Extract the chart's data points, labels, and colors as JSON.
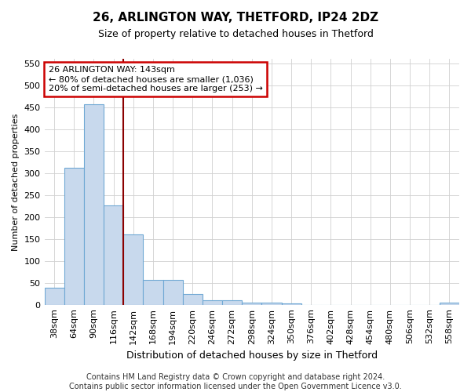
{
  "title1": "26, ARLINGTON WAY, THETFORD, IP24 2DZ",
  "title2": "Size of property relative to detached houses in Thetford",
  "xlabel": "Distribution of detached houses by size in Thetford",
  "ylabel": "Number of detached properties",
  "categories": [
    "38sqm",
    "64sqm",
    "90sqm",
    "116sqm",
    "142sqm",
    "168sqm",
    "194sqm",
    "220sqm",
    "246sqm",
    "272sqm",
    "298sqm",
    "324sqm",
    "350sqm",
    "376sqm",
    "402sqm",
    "428sqm",
    "454sqm",
    "480sqm",
    "506sqm",
    "532sqm",
    "558sqm"
  ],
  "values": [
    38,
    311,
    457,
    226,
    160,
    57,
    57,
    25,
    10,
    10,
    5,
    5,
    3,
    0,
    0,
    0,
    0,
    0,
    0,
    0,
    5
  ],
  "bar_color": "#c8d9ed",
  "bar_edge_color": "#6fa8d4",
  "vline_x": 3.5,
  "vline_color": "#8b0000",
  "annotation_line1": "26 ARLINGTON WAY: 143sqm",
  "annotation_line2": "← 80% of detached houses are smaller (1,036)",
  "annotation_line3": "20% of semi-detached houses are larger (253) →",
  "annotation_box_color": "#ffffff",
  "annotation_border_color": "#cc0000",
  "ylim": [
    0,
    560
  ],
  "yticks": [
    0,
    50,
    100,
    150,
    200,
    250,
    300,
    350,
    400,
    450,
    500,
    550
  ],
  "footer": "Contains HM Land Registry data © Crown copyright and database right 2024.\nContains public sector information licensed under the Open Government Licence v3.0.",
  "background_color": "#ffffff",
  "grid_color": "#d0d0d0",
  "title1_fontsize": 11,
  "title2_fontsize": 9,
  "xlabel_fontsize": 9,
  "ylabel_fontsize": 8,
  "tick_fontsize": 8,
  "annotation_fontsize": 8
}
